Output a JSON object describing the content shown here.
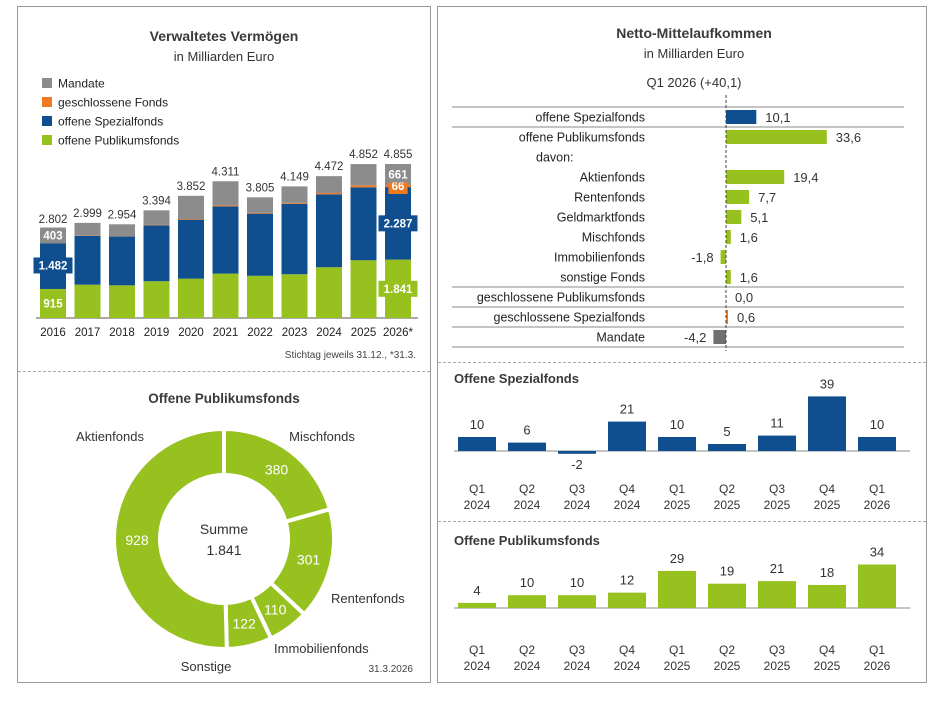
{
  "colors": {
    "mandate": "#8c8c8c",
    "closed_funds": "#f07a22",
    "special_funds": "#104f8f",
    "retail_funds": "#97c11f",
    "negative_mandate": "#707070"
  },
  "chart_data": [
    {
      "id": "aum",
      "type": "bar",
      "title": "Verwaltetes Vermögen",
      "subtitle": "in Milliarden Euro",
      "categories": [
        "2016",
        "2017",
        "2018",
        "2019",
        "2020",
        "2021",
        "2022",
        "2023",
        "2024",
        "2025",
        "2026*"
      ],
      "series": [
        {
          "name": "offene Publikumsfonds",
          "values": [
            915,
            1050,
            1030,
            1160,
            1240,
            1400,
            1330,
            1380,
            1600,
            1820,
            1841
          ]
        },
        {
          "name": "offene Spezialfonds",
          "values": [
            1482,
            1540,
            1540,
            1760,
            1860,
            2120,
            1960,
            2220,
            2300,
            2300,
            2287
          ]
        },
        {
          "name": "geschlossene Fonds",
          "values": [
            2,
            9,
            10,
            14,
            20,
            31,
            25,
            29,
            42,
            62,
            66
          ]
        },
        {
          "name": "Mandate",
          "values": [
            403,
            400,
            374,
            460,
            732,
            760,
            490,
            520,
            530,
            670,
            661
          ]
        }
      ],
      "legend_order": [
        "Mandate",
        "geschlossene Fonds",
        "offene Spezialfonds",
        "offene Publikumsfonds"
      ],
      "total_labels": [
        "2.802",
        "2.999",
        "2.954",
        "3.394",
        "3.852",
        "4.311",
        "3.805",
        "4.149",
        "4.472",
        "4.852",
        "4.855"
      ],
      "segment_labels": [
        {
          "category_index": 0,
          "series": "offene Publikumsfonds",
          "text": "915"
        },
        {
          "category_index": 0,
          "series": "offene Spezialfonds",
          "text": "1.482"
        },
        {
          "category_index": 0,
          "series": "Mandate",
          "text": "403"
        },
        {
          "category_index": 10,
          "series": "offene Publikumsfonds",
          "text": "1.841"
        },
        {
          "category_index": 10,
          "series": "offene Spezialfonds",
          "text": "2.287"
        },
        {
          "category_index": 10,
          "series": "geschlossene Fonds",
          "text": "66"
        },
        {
          "category_index": 10,
          "series": "Mandate",
          "text": "661"
        }
      ],
      "footnote": "Stichtag jeweils 31.12., *31.3."
    },
    {
      "id": "retail_breakdown",
      "type": "pie",
      "title": "Offene Publikumsfonds",
      "center_label": "Summe",
      "center_value": "1.841",
      "slices": [
        {
          "name": "Mischfonds",
          "value": 380,
          "label": "380"
        },
        {
          "name": "Rentenfonds",
          "value": 301,
          "label": "301"
        },
        {
          "name": "Immobilienfonds",
          "value": 110,
          "label": "110"
        },
        {
          "name": "Sonstige",
          "value": 122,
          "label": "122"
        },
        {
          "name": "Aktienfonds",
          "value": 928,
          "label": "928"
        }
      ],
      "date": "31.3.2026"
    },
    {
      "id": "net_flows",
      "type": "bar",
      "orientation": "horizontal",
      "title": "Netto-Mittelaufkommen",
      "subtitle": "in Milliarden Euro",
      "period": "Q1 2026 (+40,1)",
      "rows": [
        {
          "label": "offene Spezialfonds",
          "value": 10.1,
          "text": "10,1",
          "category": "special"
        },
        {
          "label": "offene Publikumsfonds",
          "value": 33.6,
          "text": "33,6",
          "category": "retail"
        },
        {
          "label": "davon:",
          "value": null,
          "text": "",
          "category": "header"
        },
        {
          "label": "Aktienfonds",
          "value": 19.4,
          "text": "19,4",
          "category": "retail"
        },
        {
          "label": "Rentenfonds",
          "value": 7.7,
          "text": "7,7",
          "category": "retail"
        },
        {
          "label": "Geldmarktfonds",
          "value": 5.1,
          "text": "5,1",
          "category": "retail"
        },
        {
          "label": "Mischfonds",
          "value": 1.6,
          "text": "1,6",
          "category": "retail"
        },
        {
          "label": "Immobilienfonds",
          "value": -1.8,
          "text": "-1,8",
          "category": "retail"
        },
        {
          "label": "sonstige Fonds",
          "value": 1.6,
          "text": "1,6",
          "category": "retail"
        },
        {
          "label": "geschlossene Publikumsfonds",
          "value": 0.0,
          "text": "0,0",
          "category": "closed"
        },
        {
          "label": "geschlossene Spezialfonds",
          "value": 0.6,
          "text": "0,6",
          "category": "closed"
        },
        {
          "label": "Mandate",
          "value": -4.2,
          "text": "-4,2",
          "category": "mandate"
        }
      ]
    },
    {
      "id": "special_quarterly",
      "type": "bar",
      "title": "Offene Spezialfonds",
      "categories": [
        [
          "Q1",
          "2024"
        ],
        [
          "Q2",
          "2024"
        ],
        [
          "Q3",
          "2024"
        ],
        [
          "Q4",
          "2024"
        ],
        [
          "Q1",
          "2025"
        ],
        [
          "Q2",
          "2025"
        ],
        [
          "Q3",
          "2025"
        ],
        [
          "Q4",
          "2025"
        ],
        [
          "Q1",
          "2026"
        ]
      ],
      "values": [
        10,
        6,
        -2,
        21,
        10,
        5,
        11,
        39,
        10
      ],
      "value_labels": [
        "10",
        "6",
        "-2",
        "21",
        "10",
        "5",
        "11",
        "39",
        "10"
      ]
    },
    {
      "id": "retail_quarterly",
      "type": "bar",
      "title": "Offene Publikumsfonds",
      "categories": [
        [
          "Q1",
          "2024"
        ],
        [
          "Q2",
          "2024"
        ],
        [
          "Q3",
          "2024"
        ],
        [
          "Q4",
          "2024"
        ],
        [
          "Q1",
          "2025"
        ],
        [
          "Q2",
          "2025"
        ],
        [
          "Q3",
          "2025"
        ],
        [
          "Q4",
          "2025"
        ],
        [
          "Q1",
          "2026"
        ]
      ],
      "values": [
        4,
        10,
        10,
        12,
        29,
        19,
        21,
        18,
        34
      ],
      "value_labels": [
        "4",
        "10",
        "10",
        "12",
        "29",
        "19",
        "21",
        "18",
        "34"
      ]
    }
  ]
}
